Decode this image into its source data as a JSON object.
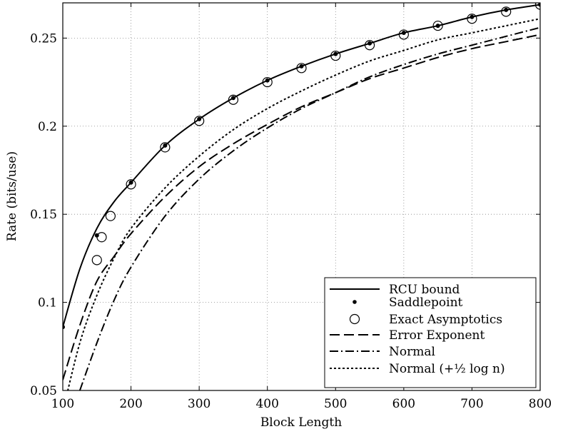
{
  "chart_data": {
    "type": "line",
    "title": "",
    "xlabel": "Block Length",
    "ylabel": "Rate (bits/use)",
    "xlim": [
      100,
      800
    ],
    "ylim": [
      0.05,
      0.27
    ],
    "xticks": [
      100,
      200,
      300,
      400,
      500,
      600,
      700,
      800
    ],
    "yticks": [
      0.05,
      0.1,
      0.15,
      0.2,
      0.25
    ],
    "ytick_labels": [
      "0.05",
      "0.1",
      "0.15",
      "0.2",
      "0.25"
    ],
    "grid": true,
    "legend_position": "bottom-right",
    "series": [
      {
        "name": "RCU bound",
        "style": "solid",
        "x": [
          100,
          125,
          150,
          175,
          200,
          250,
          300,
          350,
          400,
          450,
          500,
          550,
          600,
          650,
          700,
          750,
          800
        ],
        "y": [
          0.086,
          0.119,
          0.142,
          0.157,
          0.168,
          0.189,
          0.204,
          0.216,
          0.226,
          0.234,
          0.241,
          0.247,
          0.253,
          0.257,
          0.262,
          0.266,
          0.269
        ]
      },
      {
        "name": "Saddlepoint",
        "style": "dot-marker",
        "x": [
          100,
          150,
          200,
          250,
          300,
          350,
          400,
          450,
          500,
          550,
          600,
          650,
          700,
          750,
          800
        ],
        "y": [
          0.086,
          0.138,
          0.168,
          0.189,
          0.204,
          0.216,
          0.226,
          0.234,
          0.241,
          0.247,
          0.253,
          0.257,
          0.262,
          0.266,
          0.269
        ]
      },
      {
        "name": "Exact Asymptotics",
        "style": "circle-marker",
        "x": [
          150,
          157,
          170,
          200,
          250,
          300,
          350,
          400,
          450,
          500,
          550,
          600,
          650,
          700,
          750,
          800
        ],
        "y": [
          0.124,
          0.137,
          0.149,
          0.167,
          0.188,
          0.203,
          0.215,
          0.225,
          0.233,
          0.24,
          0.246,
          0.252,
          0.257,
          0.261,
          0.265,
          0.269
        ]
      },
      {
        "name": "Error Exponent",
        "style": "dashed",
        "x": [
          100,
          125,
          150,
          175,
          200,
          250,
          300,
          350,
          400,
          450,
          500,
          550,
          600,
          650,
          700,
          750,
          800
        ],
        "y": [
          0.056,
          0.087,
          0.112,
          0.126,
          0.139,
          0.16,
          0.177,
          0.19,
          0.201,
          0.211,
          0.219,
          0.227,
          0.233,
          0.239,
          0.244,
          0.248,
          0.252
        ]
      },
      {
        "name": "Normal",
        "style": "dashdot",
        "x": [
          125,
          150,
          175,
          200,
          250,
          300,
          350,
          400,
          450,
          500,
          550,
          600,
          650,
          700,
          750,
          800
        ],
        "y": [
          0.05,
          0.077,
          0.101,
          0.12,
          0.149,
          0.17,
          0.186,
          0.199,
          0.21,
          0.219,
          0.228,
          0.235,
          0.241,
          0.246,
          0.251,
          0.256
        ]
      },
      {
        "name": "Normal (+½ log n)",
        "style": "dotted",
        "x": [
          100,
          125,
          150,
          175,
          200,
          250,
          300,
          350,
          400,
          450,
          500,
          550,
          600,
          650,
          700,
          750,
          800
        ],
        "y": [
          0.038,
          0.077,
          0.104,
          0.125,
          0.142,
          0.165,
          0.183,
          0.198,
          0.21,
          0.22,
          0.229,
          0.237,
          0.243,
          0.249,
          0.253,
          0.257,
          0.261
        ]
      }
    ]
  }
}
